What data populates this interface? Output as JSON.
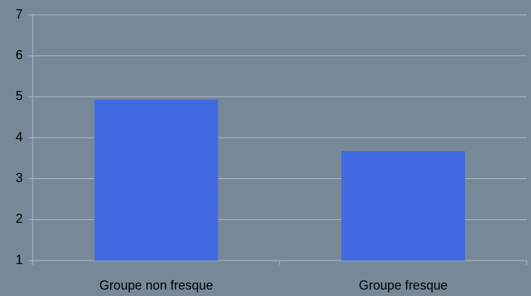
{
  "chart_data": {
    "type": "bar",
    "categories": [
      "Groupe non fresque",
      "Groupe fresque"
    ],
    "values": [
      4.93,
      3.67
    ],
    "color": "#4169e1",
    "ylim": [
      1,
      7
    ],
    "yticks": [
      1,
      2,
      3,
      4,
      5,
      6,
      7
    ],
    "grid": true
  }
}
